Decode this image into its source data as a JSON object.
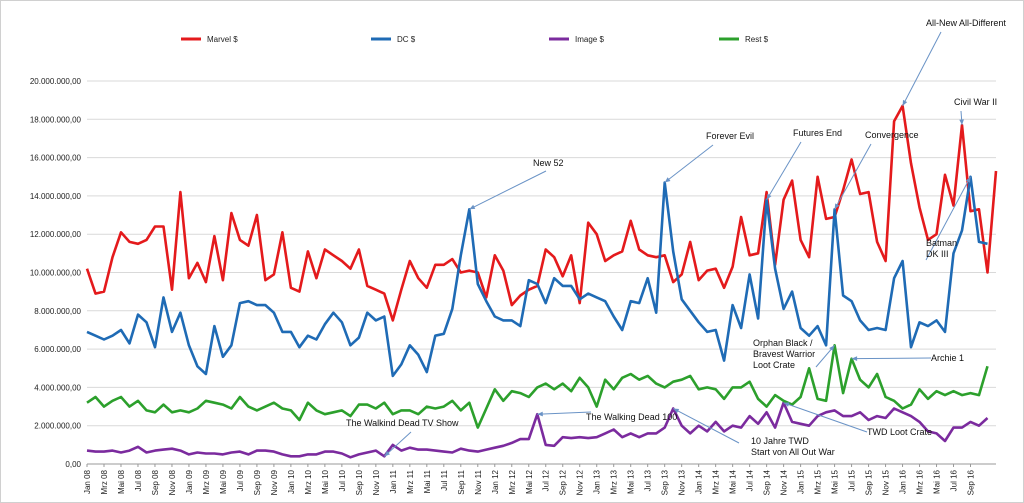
{
  "chart_data": {
    "type": "line",
    "title": "",
    "xlabel": "",
    "ylabel": "",
    "ylim": [
      0,
      20000000
    ],
    "yticks": [
      0,
      2000000,
      4000000,
      6000000,
      8000000,
      10000000,
      12000000,
      14000000,
      16000000,
      18000000,
      20000000
    ],
    "ytick_labels": [
      "0,00",
      "2.000.000,00",
      "4.000.000,00",
      "6.000.000,00",
      "8.000.000,00",
      "10.000.000,00",
      "12.000.000,00",
      "14.000.000,00",
      "16.000.000,00",
      "18.000.000,00",
      "20.000.000,00"
    ],
    "grid": "horizontal",
    "legend_position": "top",
    "x_tick_labels": [
      "Jan 08",
      "Mrz 08",
      "Mai 08",
      "Jul 08",
      "Sep 08",
      "Nov 08",
      "Jan 09",
      "Mrz 09",
      "Mai 09",
      "Jul 09",
      "Sep 09",
      "Nov 09",
      "Jan 10",
      "Mrz 10",
      "Mai 10",
      "Jul 10",
      "Sep 10",
      "Nov 10",
      "Jan 11",
      "Mrz 11",
      "Mai 11",
      "Jul 11",
      "Sep 11",
      "Nov 11",
      "Jan 12",
      "Mrz 12",
      "Mai 12",
      "Jul 12",
      "Sep 12",
      "Nov 12",
      "Jan 13",
      "Mrz 13",
      "Mai 13",
      "Jul 13",
      "Sep 13",
      "Nov 13",
      "Jan 14",
      "Mrz 14",
      "Mai 14",
      "Jul 14",
      "Sep 14",
      "Nov 14",
      "Jan 15",
      "Mrz 15",
      "Mai 15",
      "Jul 15",
      "Sep 15",
      "Nov 15",
      "Jan 16",
      "Mrz 16",
      "Mai 16",
      "Jul 16",
      "Sep 16"
    ],
    "series": [
      {
        "name": "Marvel $",
        "color": "#e41a1c",
        "values": [
          10200000,
          8900000,
          9000000,
          10800000,
          12100000,
          11600000,
          11500000,
          11700000,
          12400000,
          12400000,
          9100000,
          14200000,
          9700000,
          10500000,
          9500000,
          11900000,
          9600000,
          13100000,
          11700000,
          11400000,
          13000000,
          9600000,
          9900000,
          12100000,
          9200000,
          9000000,
          11100000,
          9700000,
          11200000,
          10900000,
          10600000,
          10200000,
          11200000,
          9300000,
          9100000,
          8900000,
          7500000,
          9100000,
          10600000,
          9700000,
          9200000,
          10400000,
          10400000,
          10700000,
          10000000,
          10100000,
          10000000,
          8700000,
          10900000,
          10100000,
          8300000,
          8800000,
          9100000,
          9300000,
          11200000,
          10800000,
          9800000,
          10900000,
          8400000,
          12600000,
          12000000,
          10600000,
          10900000,
          11100000,
          12700000,
          11200000,
          10900000,
          10800000,
          10900000,
          9500000,
          9900000,
          11600000,
          9600000,
          10100000,
          10200000,
          9200000,
          10300000,
          12900000,
          10900000,
          11000000,
          14200000,
          10400000,
          13800000,
          14800000,
          11700000,
          10800000,
          15000000,
          12800000,
          12900000,
          14300000,
          15900000,
          14100000,
          14200000,
          11600000,
          10600000,
          17900000,
          18700000,
          15700000,
          13400000,
          11700000,
          12000000,
          15100000,
          13500000,
          17700000,
          13200000,
          13300000,
          10000000,
          15300000
        ]
      },
      {
        "name": "DC $",
        "color": "#1f6bb5",
        "values": [
          6900000,
          6700000,
          6500000,
          6700000,
          7000000,
          6300000,
          7800000,
          7400000,
          6100000,
          8700000,
          6900000,
          7900000,
          6200000,
          5100000,
          4700000,
          7200000,
          5600000,
          6200000,
          8400000,
          8500000,
          8300000,
          8300000,
          7900000,
          6900000,
          6900000,
          6100000,
          6700000,
          6500000,
          7300000,
          7900000,
          7400000,
          6200000,
          6600000,
          7900000,
          7500000,
          7700000,
          4600000,
          5200000,
          6200000,
          5700000,
          4800000,
          6700000,
          6800000,
          8100000,
          10900000,
          13300000,
          9400000,
          8500000,
          7700000,
          7500000,
          7500000,
          7200000,
          9600000,
          9400000,
          8400000,
          9700000,
          9300000,
          9300000,
          8600000,
          8900000,
          8700000,
          8500000,
          7700000,
          7000000,
          8500000,
          8400000,
          9700000,
          7900000,
          14700000,
          11100000,
          8600000,
          8000000,
          7400000,
          6900000,
          7000000,
          5400000,
          8300000,
          7100000,
          9900000,
          7600000,
          13800000,
          10200000,
          8100000,
          9000000,
          7100000,
          6700000,
          7200000,
          6200000,
          13300000,
          8800000,
          8500000,
          7500000,
          7000000,
          7100000,
          7000000,
          9700000,
          10600000,
          6100000,
          7400000,
          7200000,
          7500000,
          6900000,
          11000000,
          12200000,
          15000000,
          11600000,
          11500000
        ]
      },
      {
        "name": "Image $",
        "color": "#7b2b9e",
        "values": [
          700000,
          650000,
          650000,
          700000,
          600000,
          700000,
          900000,
          600000,
          700000,
          750000,
          800000,
          700000,
          500000,
          600000,
          550000,
          550000,
          500000,
          600000,
          650000,
          500000,
          700000,
          700000,
          650000,
          500000,
          400000,
          400000,
          500000,
          500000,
          650000,
          650000,
          550000,
          350000,
          500000,
          600000,
          700000,
          400000,
          1000000,
          700000,
          850000,
          750000,
          750000,
          700000,
          650000,
          600000,
          800000,
          700000,
          650000,
          750000,
          850000,
          950000,
          1100000,
          1300000,
          1300000,
          2600000,
          1000000,
          950000,
          1400000,
          1350000,
          1400000,
          1350000,
          1400000,
          1600000,
          1800000,
          1400000,
          1600000,
          1400000,
          1600000,
          1600000,
          1900000,
          2900000,
          2000000,
          1600000,
          2000000,
          1700000,
          2200000,
          1700000,
          2000000,
          1900000,
          2500000,
          2100000,
          2700000,
          1900000,
          3200000,
          2200000,
          2100000,
          2000000,
          2500000,
          2700000,
          2800000,
          2500000,
          2500000,
          2700000,
          2300000,
          2500000,
          2400000,
          2900000,
          2700000,
          2500000,
          2200000,
          1700000,
          1600000,
          1200000,
          1900000,
          1900000,
          2200000,
          2000000,
          2400000
        ]
      },
      {
        "name": "Rest $",
        "color": "#2ca02c",
        "values": [
          3200000,
          3500000,
          3000000,
          3300000,
          3500000,
          3000000,
          3300000,
          2800000,
          2700000,
          3100000,
          2700000,
          2800000,
          2700000,
          2900000,
          3300000,
          3200000,
          3100000,
          2900000,
          3500000,
          3000000,
          2800000,
          3000000,
          3200000,
          2900000,
          2800000,
          2300000,
          3200000,
          2800000,
          2600000,
          2700000,
          2800000,
          2500000,
          3100000,
          3100000,
          2900000,
          3200000,
          2600000,
          2800000,
          2800000,
          2600000,
          3000000,
          2900000,
          3000000,
          3300000,
          2800000,
          3200000,
          1900000,
          2900000,
          3900000,
          3300000,
          3800000,
          3700000,
          3500000,
          4000000,
          4200000,
          3900000,
          4200000,
          3800000,
          4500000,
          4000000,
          3000000,
          4400000,
          3900000,
          4500000,
          4700000,
          4400000,
          4600000,
          4200000,
          4000000,
          4300000,
          4400000,
          4600000,
          3900000,
          4000000,
          3900000,
          3400000,
          4000000,
          4000000,
          4300000,
          3400000,
          3000000,
          3600000,
          3300000,
          3100000,
          3500000,
          5000000,
          3400000,
          3300000,
          6200000,
          3700000,
          5500000,
          4400000,
          4000000,
          4700000,
          3500000,
          3300000,
          2900000,
          3100000,
          3900000,
          3400000,
          3800000,
          3600000,
          3800000,
          3600000,
          3700000,
          3600000,
          5100000
        ]
      }
    ],
    "annotations": [
      {
        "id": "new52",
        "lines": [
          "New 52"
        ],
        "anchor_index": 45,
        "anchor_series": 1
      },
      {
        "id": "forever-evil",
        "lines": [
          "Forever Evil"
        ],
        "anchor_index": 68,
        "anchor_series": 1
      },
      {
        "id": "futures-end",
        "lines": [
          "Futures End"
        ],
        "anchor_index": 80,
        "anchor_series": 1
      },
      {
        "id": "convergence",
        "lines": [
          "Convergence"
        ],
        "anchor_index": 88,
        "anchor_series": 1
      },
      {
        "id": "all-new",
        "lines": [
          "All-New All-Different"
        ],
        "anchor_index": 96,
        "anchor_series": 0
      },
      {
        "id": "civil-war",
        "lines": [
          "Civil War II"
        ],
        "anchor_index": 103,
        "anchor_series": 0
      },
      {
        "id": "dk3",
        "lines": [
          "Batman",
          "DK III"
        ],
        "anchor_index": 104,
        "anchor_series": 1
      },
      {
        "id": "orphan",
        "lines": [
          "Orphan Black /",
          "Bravest Warrior",
          "Loot Crate"
        ],
        "anchor_index": 88,
        "anchor_series": 3
      },
      {
        "id": "archie",
        "lines": [
          "Archie 1"
        ],
        "anchor_index": 90,
        "anchor_series": 3
      },
      {
        "id": "twd-show",
        "lines": [
          "The Walkind Dead TV Show"
        ],
        "anchor_index": 35,
        "anchor_series": 2
      },
      {
        "id": "twd100",
        "lines": [
          "The Walking Dead 100"
        ],
        "anchor_index": 53,
        "anchor_series": 2
      },
      {
        "id": "twd-10",
        "lines": [
          "10 Jahre TWD",
          "Start von  All Out War"
        ],
        "anchor_index": 69,
        "anchor_series": 2
      },
      {
        "id": "twd-loot",
        "lines": [
          "TWD Loot Crate"
        ],
        "anchor_index": 82,
        "anchor_series": 2
      }
    ]
  }
}
